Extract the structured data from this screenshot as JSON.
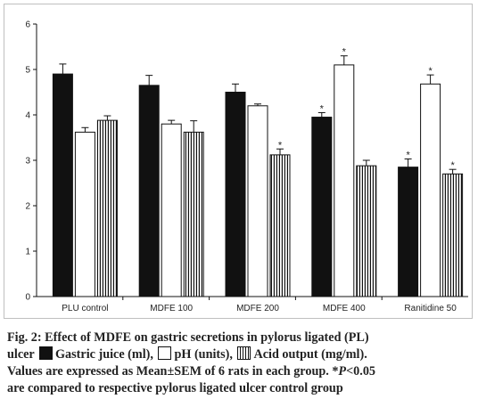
{
  "chart_data": {
    "type": "bar",
    "categories": [
      "PLU control",
      "MDFE 100",
      "MDFE 200",
      "MDFE 400",
      "Ranitidine 50"
    ],
    "series": [
      {
        "name": "Gastric juice (ml)",
        "values": [
          4.9,
          4.65,
          4.5,
          3.95,
          2.85
        ],
        "errors": [
          0.22,
          0.22,
          0.18,
          0.1,
          0.18
        ],
        "sig": [
          false,
          false,
          false,
          true,
          true
        ],
        "color": "#111111",
        "fill": "solid"
      },
      {
        "name": "pH (units)",
        "values": [
          3.62,
          3.8,
          4.2,
          5.1,
          4.68
        ],
        "errors": [
          0.1,
          0.08,
          0.04,
          0.2,
          0.2
        ],
        "sig": [
          false,
          false,
          false,
          true,
          true
        ],
        "color": "#ffffff",
        "fill": "outline"
      },
      {
        "name": "Acid output (mg/ml)",
        "values": [
          3.88,
          3.62,
          3.12,
          2.88,
          2.7
        ],
        "errors": [
          0.1,
          0.25,
          0.13,
          0.12,
          0.1
        ],
        "sig": [
          false,
          false,
          true,
          false,
          true
        ],
        "color": "#111111",
        "fill": "striped"
      }
    ],
    "ylim": [
      0,
      6
    ],
    "yticks": [
      0,
      1,
      2,
      3,
      4,
      5,
      6
    ],
    "sig_marker": "*",
    "grid": false,
    "legend": "caption"
  },
  "caption": {
    "line1": "Fig. 2: Effect of MDFE on gastric secretions in pylorus ligated (PL)",
    "line2_pre": "ulcer",
    "legend1": "Gastric juice (ml),",
    "legend2": "pH (units),",
    "legend3": "Acid output (mg/ml).",
    "line3": "Values are expressed as Mean±SEM of 6 rats in each group. *",
    "p_italic": "P",
    "line3_post": "<0.05",
    "line4": "are compared to respective pylorus ligated ulcer control group"
  }
}
